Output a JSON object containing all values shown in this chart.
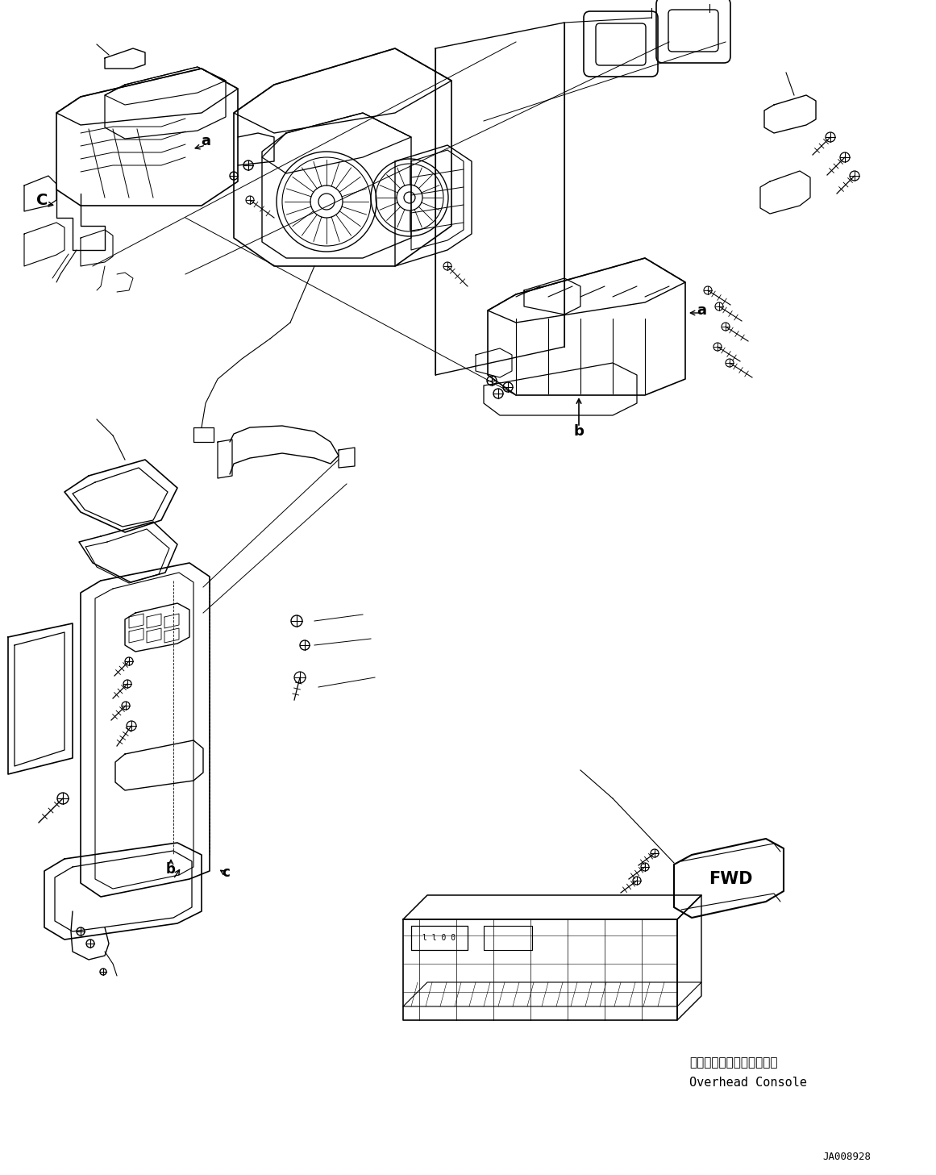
{
  "figsize": [
    11.61,
    14.57
  ],
  "dpi": 100,
  "bg_color": "#ffffff",
  "line_color": "#000000",
  "title_code": "JA008928",
  "text_japanese": "オーバーヘッドコンソール",
  "text_english": "Overhead Console",
  "text_fwd": "FWD",
  "label_a": "a",
  "label_b": "b",
  "label_C": "C",
  "label_c": "c"
}
